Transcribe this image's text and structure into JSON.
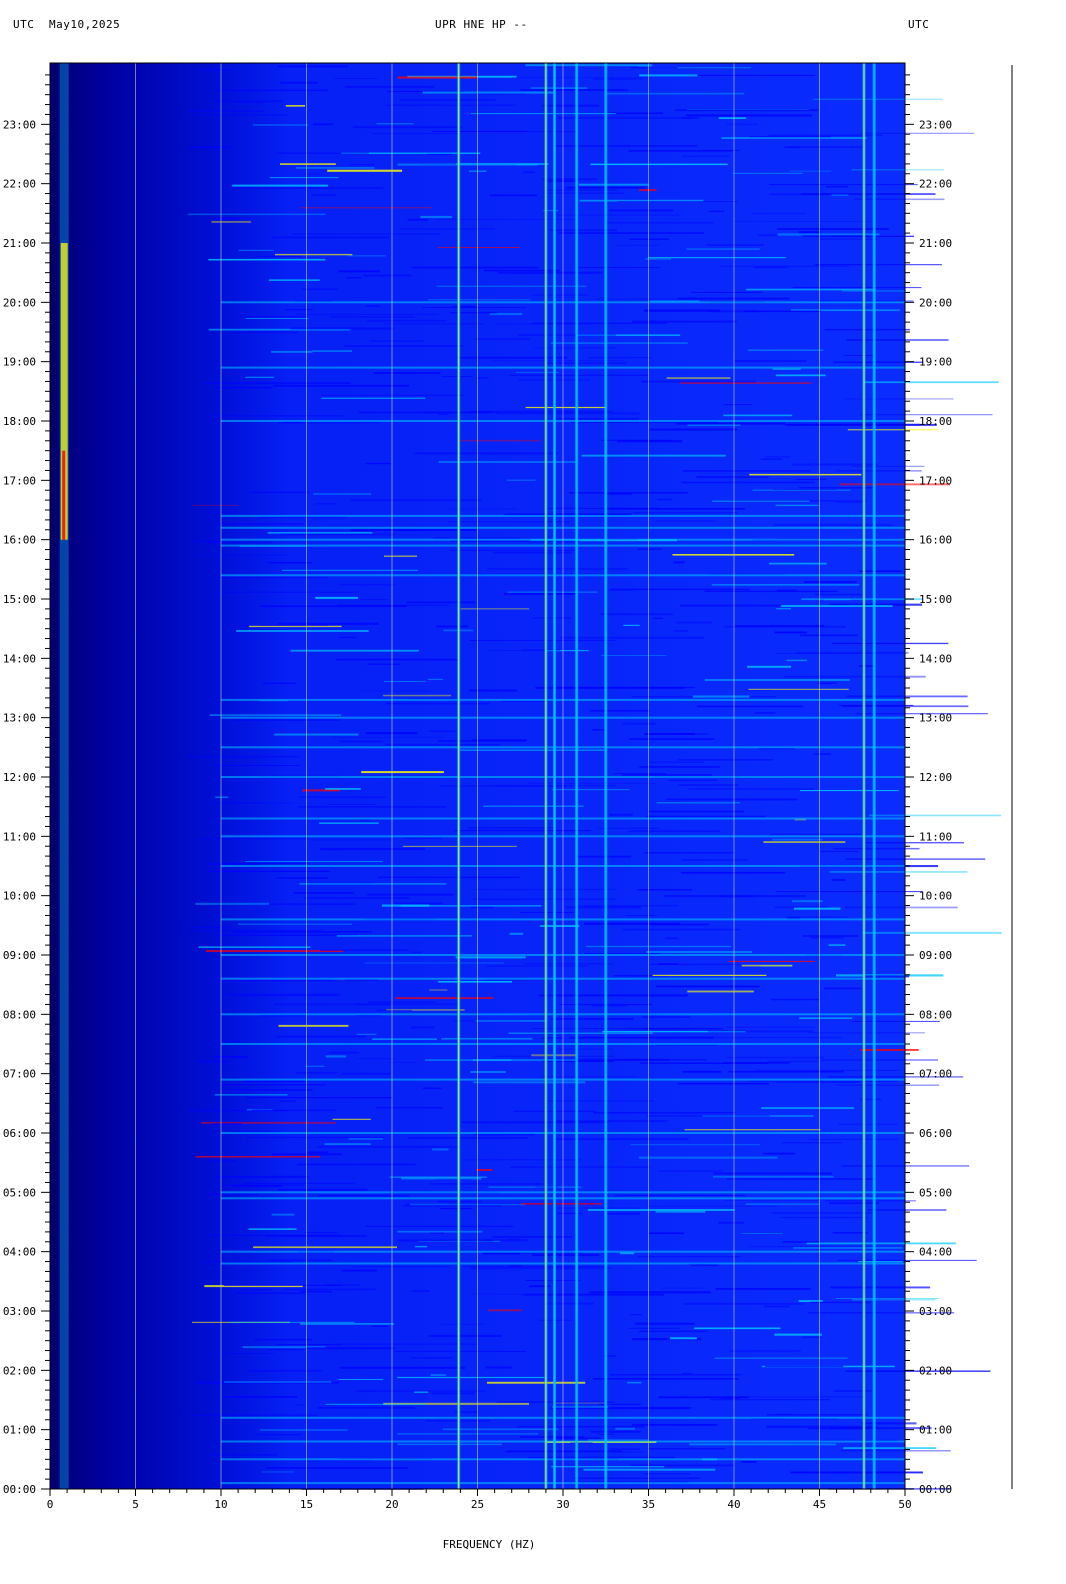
{
  "header": {
    "left_tz": "UTC",
    "date": "May10,2025",
    "station": "UPR HNE HP --",
    "right_tz": "UTC"
  },
  "chart_data": {
    "type": "heatmap",
    "title": "UPR HNE HP --",
    "xlabel": "FREQUENCY (HZ)",
    "ylabel": "",
    "xlim": [
      0,
      50
    ],
    "ylim": [
      "00:00",
      "24:00"
    ],
    "x_ticks": [
      "0",
      "5",
      "10",
      "15",
      "20",
      "25",
      "30",
      "35",
      "40",
      "45",
      "50"
    ],
    "y_ticks": [
      "00:00",
      "01:00",
      "02:00",
      "03:00",
      "04:00",
      "05:00",
      "06:00",
      "07:00",
      "08:00",
      "09:00",
      "10:00",
      "11:00",
      "12:00",
      "13:00",
      "14:00",
      "15:00",
      "16:00",
      "17:00",
      "18:00",
      "19:00",
      "20:00",
      "21:00",
      "22:00",
      "23:00"
    ],
    "grid": true,
    "colormap": [
      "#0000a0",
      "#0000ff",
      "#00c8ff",
      "#ffff00",
      "#ff0000"
    ],
    "persistent_lines_hz": [
      0.8,
      23.9,
      29.0,
      29.5,
      30.8,
      32.5,
      47.6,
      48.2
    ]
  }
}
